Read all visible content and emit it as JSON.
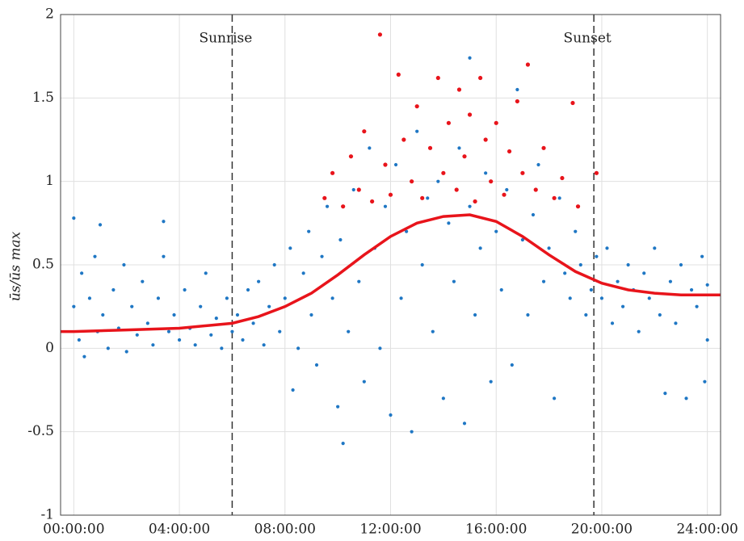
{
  "chart_data": {
    "type": "scatter",
    "ylabel": "ūs/ūs max",
    "xlim": [
      -0.5,
      24.5
    ],
    "ylim": [
      -1,
      2
    ],
    "xticks": [
      {
        "value": 0,
        "label": "00:00:00"
      },
      {
        "value": 4,
        "label": "04:00:00"
      },
      {
        "value": 8,
        "label": "08:00:00"
      },
      {
        "value": 12,
        "label": "12:00:00"
      },
      {
        "value": 16,
        "label": "16:00:00"
      },
      {
        "value": 20,
        "label": "20:00:00"
      },
      {
        "value": 24,
        "label": "24:00:00"
      }
    ],
    "yticks": [
      -1,
      -0.5,
      0,
      0.5,
      1,
      1.5,
      2
    ],
    "grid": true,
    "annotations": [
      {
        "text": "Sunrise",
        "x": 6
      },
      {
        "text": "Sunset",
        "x": 19.7
      }
    ],
    "series": [
      {
        "type": "scatter",
        "color": "#1f77c4",
        "x": [
          0.0,
          0.0,
          0.2,
          0.3,
          0.4,
          0.6,
          0.8,
          0.9,
          1.0,
          1.1,
          1.3,
          1.5,
          1.7,
          1.9,
          2.0,
          2.2,
          2.4,
          2.6,
          2.8,
          3.0,
          3.2,
          3.4,
          3.6,
          3.8,
          3.4,
          4.0,
          4.2,
          4.4,
          4.6,
          4.8,
          5.0,
          5.2,
          5.4,
          5.6,
          5.8,
          6.0,
          6.2,
          6.4,
          6.6,
          6.8,
          7.0,
          7.2,
          7.4,
          7.6,
          7.8,
          8.0,
          8.2,
          8.3,
          8.5,
          8.7,
          8.9,
          9.0,
          9.2,
          9.4,
          9.6,
          9.8,
          10.0,
          10.1,
          10.2,
          10.4,
          10.6,
          10.8,
          11.0,
          11.2,
          11.4,
          11.6,
          11.8,
          12.0,
          12.2,
          12.4,
          12.6,
          12.8,
          13.0,
          13.2,
          13.4,
          13.6,
          13.8,
          14.0,
          14.2,
          14.4,
          14.6,
          14.8,
          15.0,
          15.0,
          15.2,
          15.4,
          15.6,
          15.8,
          16.0,
          16.2,
          16.4,
          16.6,
          16.8,
          17.0,
          17.2,
          17.4,
          17.6,
          17.8,
          18.0,
          18.2,
          18.4,
          18.6,
          18.8,
          19.0,
          19.2,
          19.4,
          19.6,
          19.8,
          20.0,
          20.2,
          20.4,
          20.6,
          20.8,
          21.0,
          21.2,
          21.4,
          21.6,
          21.8,
          22.0,
          22.2,
          22.4,
          22.6,
          22.8,
          23.0,
          23.2,
          23.4,
          23.6,
          23.8,
          24.0,
          24.0,
          23.9
        ],
        "y": [
          0.25,
          0.78,
          0.05,
          0.45,
          -0.05,
          0.3,
          0.55,
          0.1,
          0.74,
          0.2,
          0.0,
          0.35,
          0.12,
          0.5,
          -0.02,
          0.25,
          0.08,
          0.4,
          0.15,
          0.02,
          0.3,
          0.55,
          0.1,
          0.2,
          0.76,
          0.05,
          0.35,
          0.12,
          0.02,
          0.25,
          0.45,
          0.08,
          0.18,
          0.0,
          0.3,
          0.1,
          0.2,
          0.05,
          0.35,
          0.15,
          0.4,
          0.02,
          0.25,
          0.5,
          0.1,
          0.3,
          0.6,
          -0.25,
          0.0,
          0.45,
          0.7,
          0.2,
          -0.1,
          0.55,
          0.85,
          0.3,
          -0.35,
          0.65,
          -0.57,
          0.1,
          0.95,
          0.4,
          -0.2,
          1.2,
          0.6,
          0.0,
          0.85,
          -0.4,
          1.1,
          0.3,
          0.7,
          -0.5,
          1.3,
          0.5,
          0.9,
          0.1,
          1.0,
          -0.3,
          0.75,
          0.4,
          1.2,
          -0.45,
          0.85,
          1.74,
          0.2,
          0.6,
          1.05,
          -0.2,
          0.7,
          0.35,
          0.95,
          -0.1,
          1.55,
          0.65,
          0.2,
          0.8,
          1.1,
          0.4,
          0.6,
          -0.3,
          0.9,
          0.45,
          0.3,
          0.7,
          0.5,
          0.2,
          0.35,
          0.55,
          0.3,
          0.6,
          0.15,
          0.4,
          0.25,
          0.5,
          0.35,
          0.1,
          0.45,
          0.3,
          0.6,
          0.2,
          -0.27,
          0.4,
          0.15,
          0.5,
          -0.3,
          0.35,
          0.25,
          0.55,
          0.05,
          0.38,
          -0.2
        ]
      },
      {
        "type": "scatter",
        "color": "#e8141b",
        "x": [
          9.5,
          9.8,
          10.2,
          10.5,
          10.8,
          11.0,
          11.3,
          11.6,
          11.8,
          12.0,
          12.3,
          12.5,
          12.8,
          13.0,
          13.2,
          13.5,
          13.8,
          14.0,
          14.2,
          14.5,
          14.6,
          14.8,
          15.0,
          15.2,
          15.4,
          15.6,
          15.8,
          16.0,
          16.3,
          16.5,
          16.8,
          17.0,
          17.2,
          17.5,
          17.8,
          18.2,
          18.5,
          18.9,
          19.1,
          19.8
        ],
        "y": [
          0.9,
          1.05,
          0.85,
          1.15,
          0.95,
          1.3,
          0.88,
          1.88,
          1.1,
          0.92,
          1.64,
          1.25,
          1.0,
          1.45,
          0.9,
          1.2,
          1.62,
          1.05,
          1.35,
          0.95,
          1.55,
          1.15,
          1.4,
          0.88,
          1.62,
          1.25,
          1.0,
          1.35,
          0.92,
          1.18,
          1.48,
          1.05,
          1.7,
          0.95,
          1.2,
          0.9,
          1.02,
          1.47,
          0.85,
          1.05
        ]
      },
      {
        "type": "line",
        "color": "#e8141b",
        "x": [
          -0.5,
          0,
          2,
          4,
          6,
          7,
          8,
          9,
          10,
          11,
          12,
          13,
          14,
          15,
          16,
          17,
          18,
          19,
          20,
          21,
          22,
          23,
          24,
          24.5
        ],
        "y": [
          0.1,
          0.1,
          0.11,
          0.12,
          0.15,
          0.19,
          0.25,
          0.33,
          0.44,
          0.56,
          0.67,
          0.75,
          0.79,
          0.8,
          0.76,
          0.67,
          0.56,
          0.46,
          0.39,
          0.35,
          0.33,
          0.32,
          0.32,
          0.32
        ]
      }
    ]
  }
}
